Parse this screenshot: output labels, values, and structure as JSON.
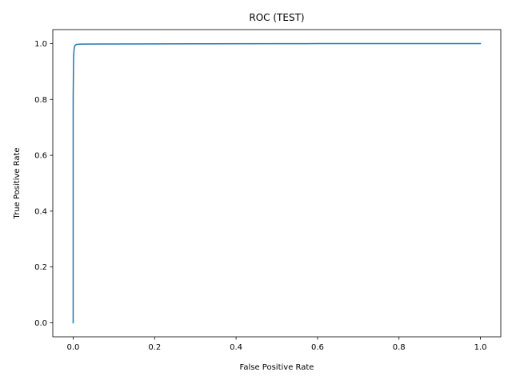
{
  "chart_data": {
    "type": "line",
    "title": "ROC (TEST)",
    "xlabel": "False Positive Rate",
    "ylabel": "True Positive Rate",
    "xlim": [
      -0.05,
      1.05
    ],
    "ylim": [
      -0.05,
      1.05
    ],
    "grid": false,
    "legend": "none",
    "xticks": [
      0.0,
      0.2,
      0.4,
      0.6,
      0.8,
      1.0
    ],
    "xtick_labels": [
      "0.0",
      "0.2",
      "0.4",
      "0.6",
      "0.8",
      "1.0"
    ],
    "yticks": [
      0.0,
      0.2,
      0.4,
      0.6,
      0.8,
      1.0
    ],
    "ytick_labels": [
      "0.0",
      "0.2",
      "0.4",
      "0.6",
      "0.8",
      "1.0"
    ],
    "series": [
      {
        "color": "#1f77b4",
        "x": [
          0.0,
          0.0,
          0.001,
          0.002,
          0.003,
          0.005,
          0.008,
          0.02,
          0.1,
          0.3,
          0.49,
          0.6,
          0.8,
          1.0
        ],
        "y": [
          0.0,
          0.8,
          0.95,
          0.975,
          0.988,
          0.994,
          0.997,
          0.998,
          0.9985,
          0.999,
          0.9995,
          0.9997,
          0.9999,
          1.0
        ]
      }
    ]
  }
}
